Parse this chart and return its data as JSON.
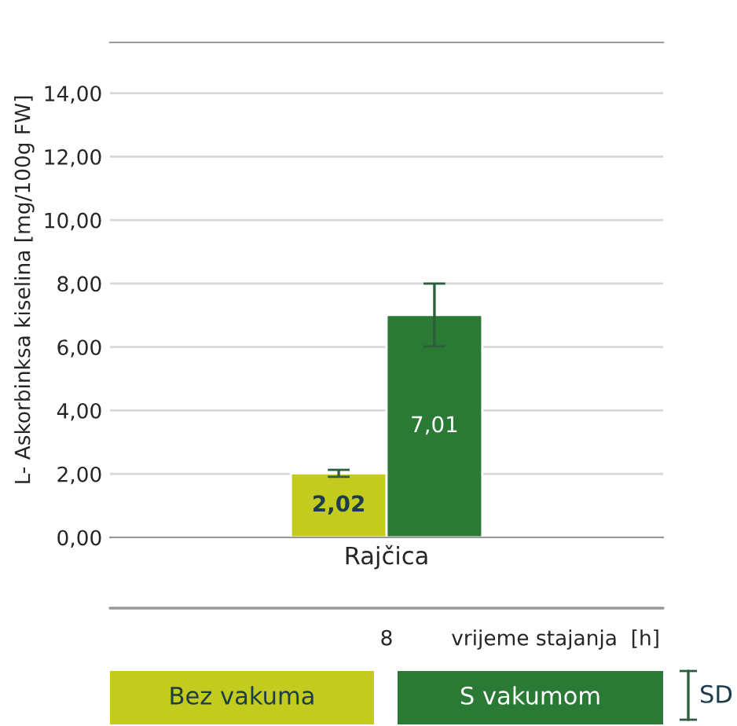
{
  "chart_data": {
    "type": "bar",
    "ylabel": "L- Askorbinksa kiselina [mg/100g FW]",
    "categories": [
      "Rajčica"
    ],
    "series": [
      {
        "name": "Bez vakuma",
        "color": "#c3cb1e",
        "values": [
          2.02
        ],
        "errors": [
          0.11
        ],
        "value_labels": [
          "2,02"
        ]
      },
      {
        "name": "S vakumom",
        "color": "#2a7a36",
        "values": [
          7.01
        ],
        "errors": [
          0.99
        ],
        "value_labels": [
          "7,01"
        ]
      }
    ],
    "ylim": [
      0,
      15.6
    ],
    "yticks": [
      {
        "value": 0,
        "label": "0,00"
      },
      {
        "value": 2,
        "label": "2,00"
      },
      {
        "value": 4,
        "label": "4,00"
      },
      {
        "value": 6,
        "label": "6,00"
      },
      {
        "value": 8,
        "label": "8,00"
      },
      {
        "value": 10,
        "label": "10,00"
      },
      {
        "value": 12,
        "label": "12,00"
      },
      {
        "value": 14,
        "label": "14,00"
      }
    ],
    "grid": "y",
    "legend": "bottom",
    "annotations": [
      "8",
      "vrijeme stajanja  [h]",
      "SD"
    ]
  }
}
